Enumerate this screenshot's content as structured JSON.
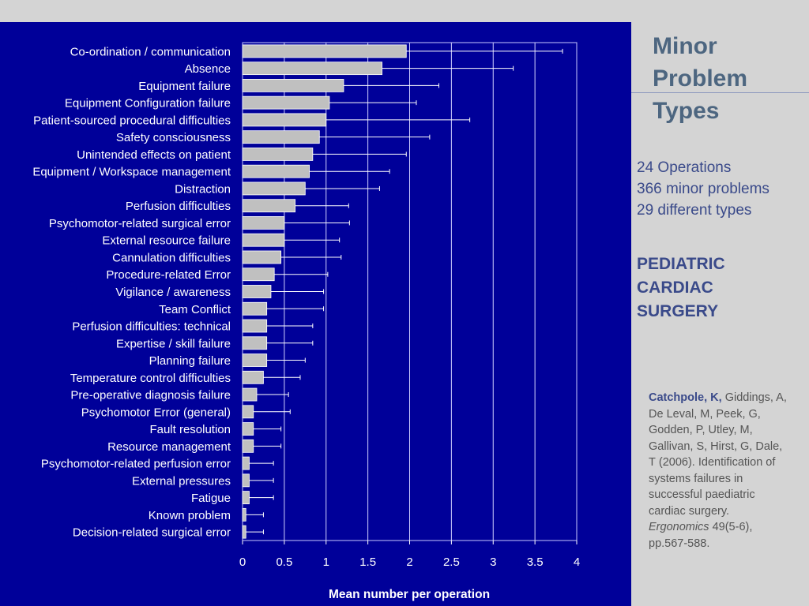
{
  "slide": {
    "title": [
      "Minor",
      "Problem",
      "Types"
    ],
    "stats": [
      "24 Operations",
      "366 minor problems",
      "29 different types"
    ],
    "subject": [
      "PEDIATRIC",
      "CARDIAC",
      "SURGERY"
    ],
    "citation": {
      "authors_bold": "Catchpole, K,",
      "authors_rest": "Giddings, A, De Leval, M, Peek, G, Godden, P, Utley, M, Gallivan, S, Hirst, G, Dale, T",
      "year_title": "(2006). Identification of systems failures in successful paediatric cardiac surgery.",
      "journal": "Ergonomics",
      "volume_pages": "49(5-6), pp.567-588."
    },
    "colors": {
      "chart_background": "#000099",
      "bar_fill": "#c0c0c0",
      "page_background": "#d4d4d4",
      "title_color": "#4d6680",
      "text_color": "#3a4a8a"
    }
  },
  "chart_data": {
    "type": "bar",
    "orientation": "horizontal",
    "xlabel": "Mean number per operation",
    "xlim": [
      0,
      4
    ],
    "xticks": [
      "0",
      "0.5",
      "1",
      "1.5",
      "2",
      "2.5",
      "3",
      "3.5",
      "4"
    ],
    "grid": "vertical",
    "categories": [
      "Co-ordination / communication",
      "Absence",
      "Equipment failure",
      "Equipment Configuration failure",
      "Patient-sourced procedural difficulties",
      "Safety consciousness",
      "Unintended effects on patient",
      "Equipment / Workspace management",
      "Distraction",
      "Perfusion difficulties",
      "Psychomotor-related surgical error",
      "External resource failure",
      "Cannulation difficulties",
      "Procedure-related Error",
      "Vigilance / awareness",
      "Team Conflict",
      "Perfusion difficulties: technical",
      "Expertise / skill failure",
      "Planning failure",
      "Temperature control difficulties",
      "Pre-operative diagnosis failure",
      "Psychomotor Error (general)",
      "Fault resolution",
      "Resource management",
      "Psychomotor-related perfusion error",
      "External pressures",
      "Fatigue",
      "Known problem",
      "Decision-related surgical error"
    ],
    "values": [
      1.96,
      1.67,
      1.21,
      1.04,
      1.0,
      0.92,
      0.84,
      0.8,
      0.75,
      0.63,
      0.5,
      0.5,
      0.46,
      0.38,
      0.34,
      0.29,
      0.29,
      0.29,
      0.29,
      0.25,
      0.17,
      0.13,
      0.13,
      0.13,
      0.08,
      0.08,
      0.08,
      0.04,
      0.04
    ],
    "error_upper": [
      3.83,
      3.24,
      2.35,
      2.08,
      2.72,
      2.24,
      1.96,
      1.76,
      1.64,
      1.27,
      1.28,
      1.16,
      1.18,
      1.02,
      0.97,
      0.97,
      0.84,
      0.84,
      0.75,
      0.69,
      0.55,
      0.57,
      0.46,
      0.46,
      0.37,
      0.37,
      0.37,
      0.25,
      0.25
    ]
  }
}
